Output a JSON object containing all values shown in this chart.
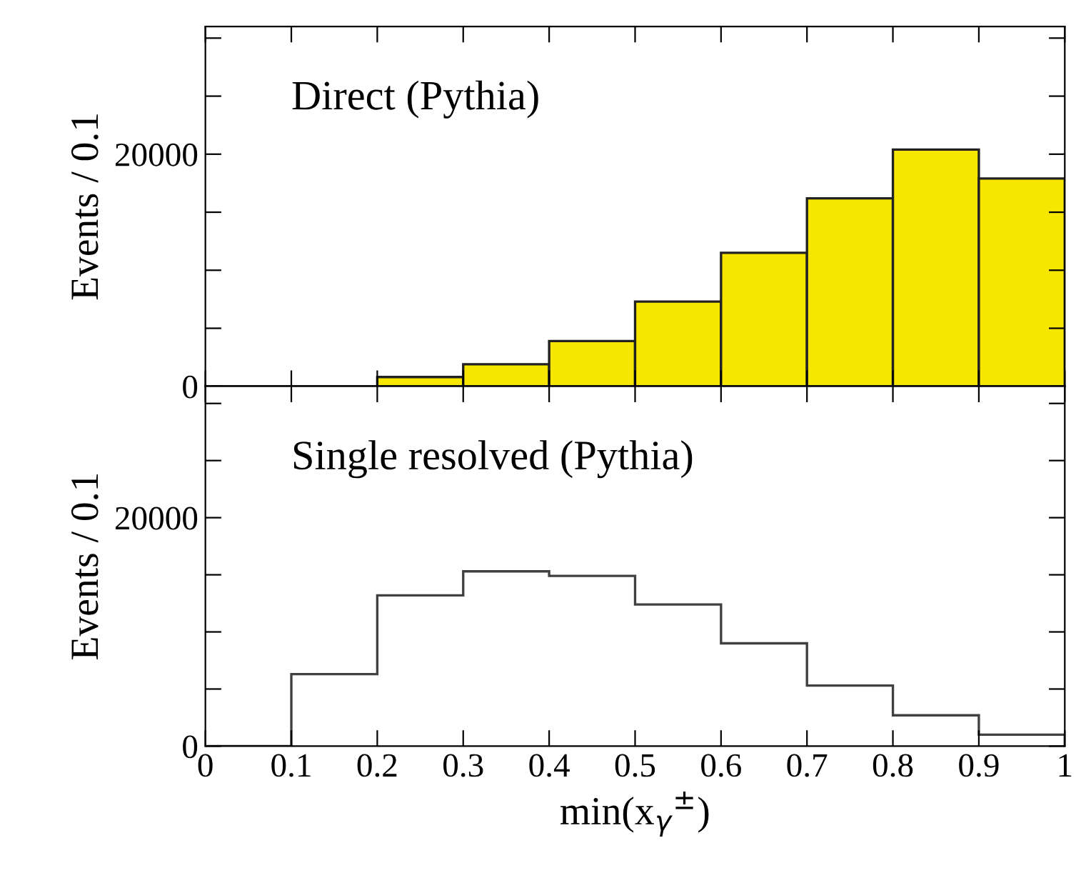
{
  "chart_data": [
    {
      "type": "histogram",
      "annotations": [
        "Direct (Pythia)"
      ],
      "ylabel": "Events / 0.1",
      "bins": [
        0,
        0.1,
        0.2,
        0.3,
        0.4,
        0.5,
        0.6,
        0.7,
        0.8,
        0.9,
        1.0
      ],
      "values": [
        0,
        0,
        800,
        1900,
        3900,
        7300,
        11500,
        16200,
        20400,
        17900
      ],
      "color": "#222222",
      "colors": [
        null,
        null,
        "#f7e600",
        "#f7e600",
        "#f7e600",
        "#f7e600",
        "#f7e600",
        "#f7e600",
        "#f7e600",
        "#f7e600"
      ],
      "xlim": [
        0,
        1
      ],
      "xticks": [
        0,
        0.1,
        0.2,
        0.3,
        0.4,
        0.5,
        0.6,
        0.7,
        0.8,
        0.9,
        1
      ],
      "ylim": [
        0,
        31000
      ],
      "yticks": [
        0,
        {
          "value": 5000,
          "label": null
        },
        {
          "value": 10000,
          "label": null
        },
        {
          "value": 15000,
          "label": null
        },
        20000,
        {
          "value": 25000,
          "label": null
        },
        {
          "value": 30000,
          "label": null
        }
      ],
      "tick_labels": "y"
    },
    {
      "type": "histogram",
      "annotations": [
        "Single resolved (Pythia)"
      ],
      "ylabel": "Events / 0.1",
      "xlabel": "min(x$_{γ}$$^{±}$)",
      "bins": [
        0,
        0.1,
        0.2,
        0.3,
        0.4,
        0.5,
        0.6,
        0.7,
        0.8,
        0.9,
        1.0
      ],
      "values": [
        0,
        6300,
        13200,
        15300,
        14900,
        12400,
        9000,
        5300,
        2700,
        1000
      ],
      "color": "#404040",
      "xlim": [
        0,
        1
      ],
      "xticks": [
        0,
        0.1,
        0.2,
        0.3,
        0.4,
        0.5,
        0.6,
        0.7,
        0.8,
        0.9,
        1
      ],
      "ylim": [
        0,
        31500
      ],
      "yticks": [
        0,
        {
          "value": 5000,
          "label": null
        },
        {
          "value": 10000,
          "label": null
        },
        {
          "value": 15000,
          "label": null
        },
        20000,
        {
          "value": 25000,
          "label": null
        },
        {
          "value": 30000,
          "label": null
        }
      ]
    }
  ]
}
